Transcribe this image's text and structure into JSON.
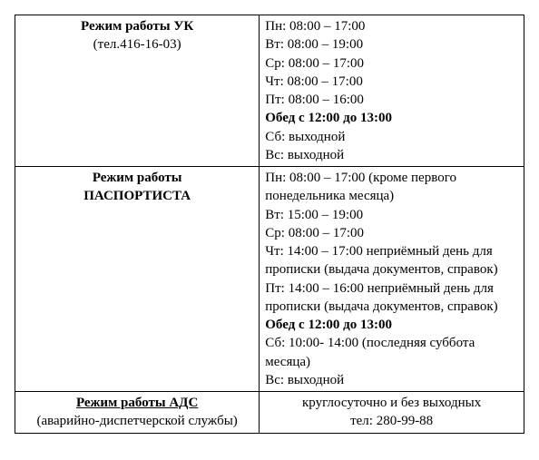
{
  "row1": {
    "title": "Режим работы УК",
    "subtitle": "(тел.416-16-03)",
    "lines": [
      "Пн: 08:00 – 17:00",
      "Вт: 08:00 – 19:00",
      "Ср: 08:00 – 17:00",
      "Чт: 08:00 – 17:00",
      "Пт: 08:00 – 16:00"
    ],
    "lunch": "Обед с 12:00 до 13:00",
    "weekend": [
      "Сб: выходной",
      "Вс: выходной"
    ]
  },
  "row2": {
    "title1": "Режим работы",
    "title2": "ПАСПОРТИСТА",
    "lines": [
      "Пн: 08:00 – 17:00 (кроме первого понедельника месяца)",
      "Вт: 15:00 – 19:00",
      "Ср: 08:00 – 17:00",
      "Чт: 14:00 – 17:00 неприёмный день для прописки (выдача документов, справок)",
      "Пт: 14:00 – 16:00 неприёмный день для прописки (выдача документов, справок)"
    ],
    "lunch": "Обед с 12:00 до 13:00",
    "weekend": [
      "Сб: 10:00- 14:00 (последняя суббота месяца)",
      "Вс: выходной"
    ]
  },
  "row3": {
    "title": "Режим работы АДС",
    "subtitle": "(аварийно-диспетчерской службы)",
    "line1": "круглосуточно и без выходных",
    "line2": "тел: 280-99-88"
  }
}
